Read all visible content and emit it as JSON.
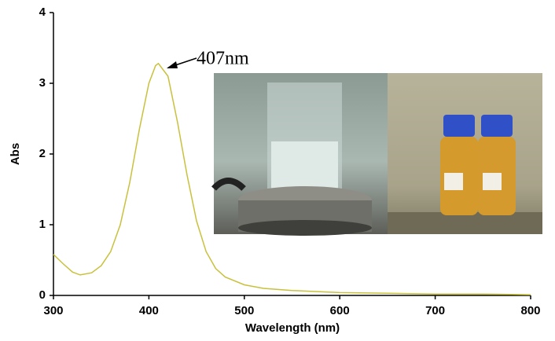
{
  "chart_data": {
    "type": "line",
    "x_label": "Wavelength (nm)",
    "y_label": "Abs",
    "annotation": "407nm",
    "x": [
      300,
      310,
      320,
      328,
      340,
      350,
      360,
      370,
      380,
      390,
      400,
      407,
      410,
      420,
      430,
      440,
      450,
      460,
      470,
      480,
      500,
      520,
      550,
      600,
      650,
      700,
      750,
      800
    ],
    "series": [
      {
        "color": "#c9c13c",
        "values": [
          0.58,
          0.45,
          0.33,
          0.29,
          0.32,
          0.42,
          0.62,
          1.0,
          1.6,
          2.35,
          3.0,
          3.25,
          3.28,
          3.1,
          2.45,
          1.7,
          1.05,
          0.62,
          0.38,
          0.26,
          0.15,
          0.1,
          0.07,
          0.04,
          0.03,
          0.02,
          0.02,
          0.01
        ]
      }
    ],
    "xlim": [
      300,
      800
    ],
    "ylim": [
      0,
      4
    ],
    "xticks": [
      300,
      400,
      500,
      600,
      700,
      800
    ],
    "yticks": [
      0,
      1,
      2,
      3,
      4
    ]
  }
}
